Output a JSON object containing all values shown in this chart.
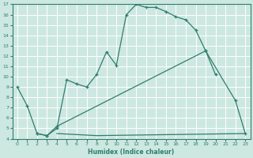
{
  "xlabel": "Humidex (Indice chaleur)",
  "xlim": [
    -0.5,
    23.5
  ],
  "ylim": [
    4,
    17
  ],
  "xticks": [
    0,
    1,
    2,
    3,
    4,
    5,
    6,
    7,
    8,
    9,
    10,
    11,
    12,
    13,
    14,
    15,
    16,
    17,
    18,
    19,
    20,
    21,
    22,
    23
  ],
  "yticks": [
    4,
    5,
    6,
    7,
    8,
    9,
    10,
    11,
    12,
    13,
    14,
    15,
    16,
    17
  ],
  "bg_color": "#cde8e0",
  "grid_color": "#b8ddd5",
  "line_color": "#2e7d6e",
  "line1_x": [
    0,
    1,
    2,
    3,
    4,
    5,
    6,
    7,
    8,
    9,
    10,
    11,
    12,
    13,
    14,
    15,
    16,
    17,
    18,
    19,
    20
  ],
  "line1_y": [
    9.0,
    7.2,
    4.5,
    4.3,
    5.0,
    9.7,
    9.3,
    9.0,
    10.2,
    12.4,
    11.1,
    16.0,
    17.0,
    16.7,
    16.7,
    16.3,
    15.8,
    15.5,
    14.5,
    12.5,
    10.2
  ],
  "line2_x": [
    2,
    3,
    4,
    19,
    22,
    23
  ],
  "line2_y": [
    4.5,
    4.3,
    5.2,
    12.5,
    7.7,
    4.5
  ],
  "line3_x": [
    4,
    8,
    23
  ],
  "line3_y": [
    4.5,
    4.3,
    4.5
  ]
}
